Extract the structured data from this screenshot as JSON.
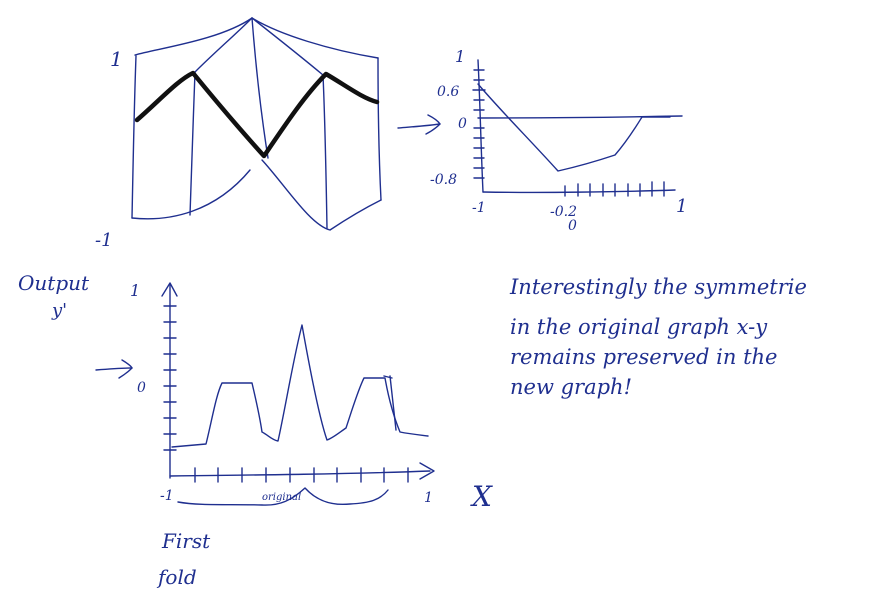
{
  "colors": {
    "ink": "#1f2f8f",
    "bold": "#111111",
    "background": "#ffffff"
  },
  "fold_sketch": {
    "top_label": "1",
    "bottom_label": "-1"
  },
  "arrows": {
    "first": "arrow-right-icon",
    "second": "arrow-right-icon"
  },
  "small_plot": {
    "y_axis_top": "1",
    "y_tick_high": "0.6",
    "y_tick_zero": "0",
    "y_tick_low": "-0.8",
    "x_left": "-1",
    "x_mid": "-0.2",
    "x_mid_sub": "0",
    "x_right": "1"
  },
  "output_plot": {
    "y_label_line1": "Output",
    "y_label_line2": "y'",
    "y_top": "1",
    "y_zero": "0",
    "x_left": "-1",
    "x_right": "1",
    "x_axis_name": "X",
    "brace_label": "original",
    "fold_label_line1": "First",
    "fold_label_line2": "fold"
  },
  "note": {
    "line1": "Interestingly the symmetrie",
    "line2": "in the original graph x-y",
    "line3": "remains preserved in the",
    "line4": "new graph!"
  }
}
